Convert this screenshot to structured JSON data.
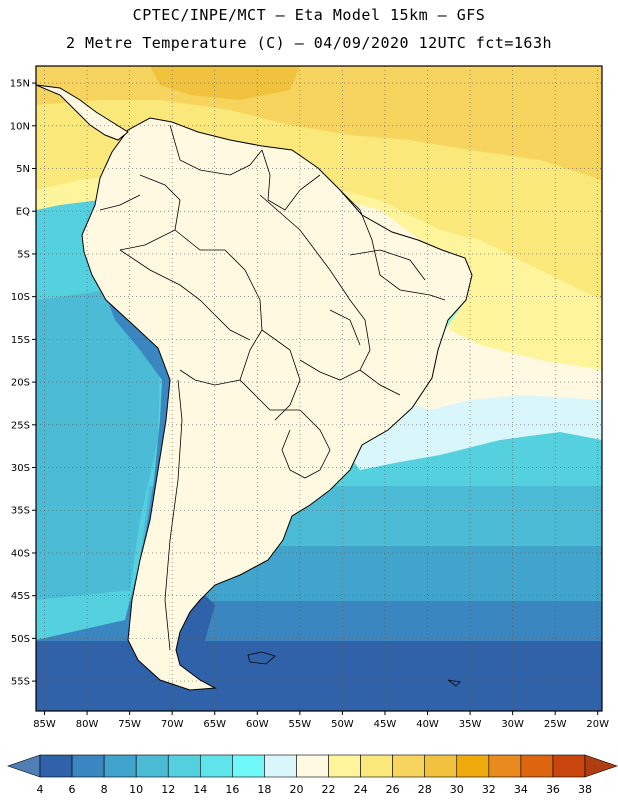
{
  "header": {
    "line1": "CPTEC/INPE/MCT –  Eta Model 15km – GFS",
    "line2": "2 Metre Temperature (C) – 04/09/2020 12UTC fct=163h"
  },
  "map": {
    "lon_range": [
      -86,
      -19.5
    ],
    "lat_range": [
      -58.5,
      17
    ],
    "lat_ticks": [
      {
        "value": 15,
        "label": "15N"
      },
      {
        "value": 10,
        "label": "10N"
      },
      {
        "value": 5,
        "label": "5N"
      },
      {
        "value": 0,
        "label": "EQ"
      },
      {
        "value": -5,
        "label": "5S"
      },
      {
        "value": -10,
        "label": "10S"
      },
      {
        "value": -15,
        "label": "15S"
      },
      {
        "value": -20,
        "label": "20S"
      },
      {
        "value": -25,
        "label": "25S"
      },
      {
        "value": -30,
        "label": "30S"
      },
      {
        "value": -35,
        "label": "35S"
      },
      {
        "value": -40,
        "label": "40S"
      },
      {
        "value": -45,
        "label": "45S"
      },
      {
        "value": -50,
        "label": "50S"
      },
      {
        "value": -55,
        "label": "55S"
      }
    ],
    "lon_ticks": [
      {
        "value": -85,
        "label": "85W"
      },
      {
        "value": -80,
        "label": "80W"
      },
      {
        "value": -75,
        "label": "75W"
      },
      {
        "value": -70,
        "label": "70W"
      },
      {
        "value": -65,
        "label": "65W"
      },
      {
        "value": -60,
        "label": "60W"
      },
      {
        "value": -55,
        "label": "55W"
      },
      {
        "value": -50,
        "label": "50W"
      },
      {
        "value": -45,
        "label": "45W"
      },
      {
        "value": -40,
        "label": "40W"
      },
      {
        "value": -35,
        "label": "35W"
      },
      {
        "value": -30,
        "label": "30W"
      },
      {
        "value": -25,
        "label": "25W"
      },
      {
        "value": -20,
        "label": "20W"
      }
    ],
    "grid": true,
    "grid_style": "dotted"
  },
  "colorbar": {
    "labels": [
      "4",
      "6",
      "8",
      "10",
      "12",
      "14",
      "16",
      "18",
      "20",
      "22",
      "24",
      "26",
      "28",
      "30",
      "32",
      "34",
      "36",
      "38"
    ],
    "colors": [
      "#4f7fb4",
      "#2f62a8",
      "#3a86c0",
      "#40a4cc",
      "#4cbcd6",
      "#55d0de",
      "#5ee4ea",
      "#70f7f7",
      "#d9f7fb",
      "#fff9e2",
      "#fdf49c",
      "#fae87a",
      "#f6d45e",
      "#f1c23e",
      "#efaa0c",
      "#e98a1e",
      "#de6510",
      "#c8460e",
      "#b03c12"
    ],
    "arrows": true
  }
}
